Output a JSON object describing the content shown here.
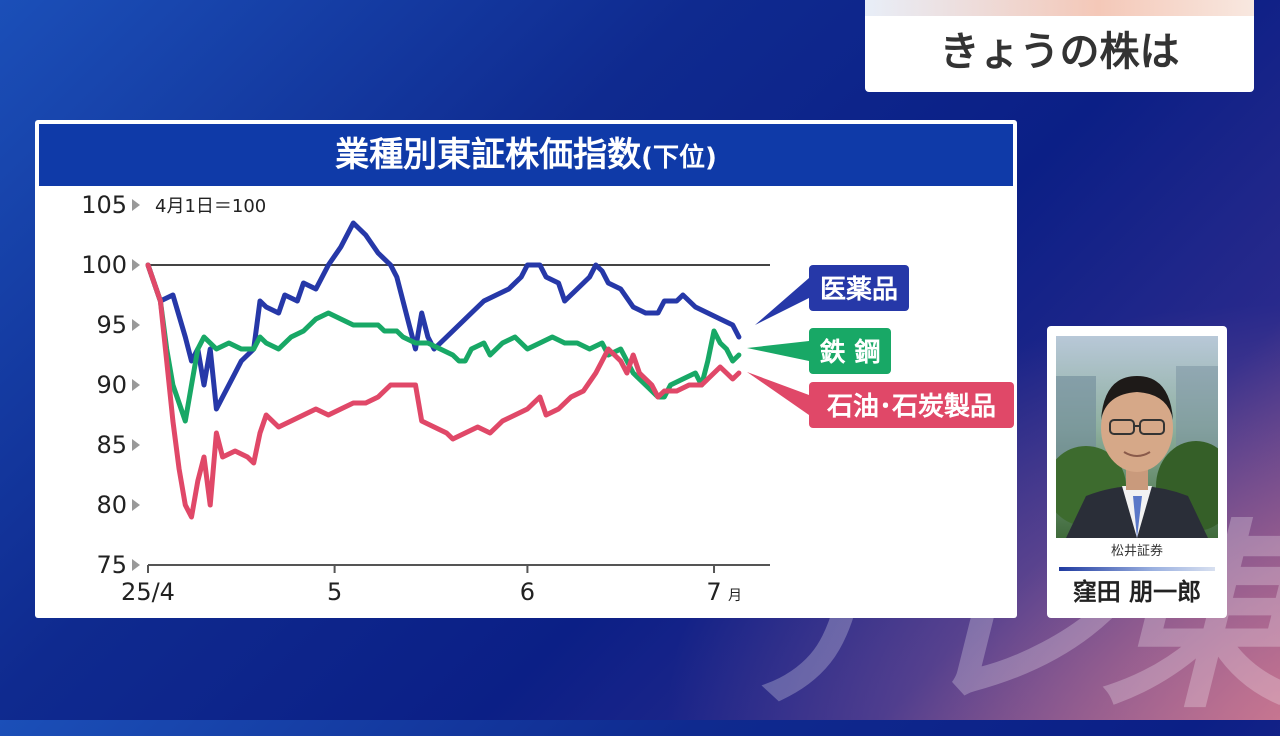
{
  "topic": {
    "title": "きょうの株は"
  },
  "chart_card": {
    "title": "業種別東証株価指数",
    "subtitle": "(下位)",
    "note": "4月1日＝100"
  },
  "guest": {
    "company": "松井証券",
    "name": "窪田 朋一郎"
  },
  "watermark": {
    "text": "テレ東"
  },
  "colors": {
    "pharma": "#2638a8",
    "steel": "#18a866",
    "oil": "#e04868",
    "header": "#0f3aa8"
  },
  "chart_data": {
    "type": "line",
    "title": "業種別東証株価指数(下位)",
    "note": "4月1日＝100",
    "ylim": [
      75,
      105
    ],
    "yticks": [
      105,
      100,
      95,
      90,
      85,
      80,
      75
    ],
    "reference_line": 100,
    "xlim": [
      0,
      100
    ],
    "xticks": [
      {
        "x": 0,
        "label": "25/4",
        "unit": ""
      },
      {
        "x": 30,
        "label": "5",
        "unit": ""
      },
      {
        "x": 61,
        "label": "6",
        "unit": ""
      },
      {
        "x": 91,
        "label": "7",
        "unit": "月"
      }
    ],
    "series": [
      {
        "name": "医薬品",
        "color": "#2638a8",
        "points": [
          [
            0,
            100
          ],
          [
            2,
            97
          ],
          [
            4,
            97.5
          ],
          [
            6,
            94
          ],
          [
            7,
            92
          ],
          [
            8,
            93
          ],
          [
            9,
            90
          ],
          [
            10,
            93
          ],
          [
            11,
            88
          ],
          [
            12,
            89
          ],
          [
            14,
            91
          ],
          [
            15,
            92
          ],
          [
            17,
            93
          ],
          [
            18,
            97
          ],
          [
            19,
            96.5
          ],
          [
            21,
            96
          ],
          [
            22,
            97.5
          ],
          [
            24,
            97
          ],
          [
            25,
            98.5
          ],
          [
            27,
            98
          ],
          [
            29,
            100
          ],
          [
            31,
            101.5
          ],
          [
            33,
            103.5
          ],
          [
            35,
            102.5
          ],
          [
            37,
            101
          ],
          [
            39,
            100
          ],
          [
            40,
            99
          ],
          [
            41,
            97
          ],
          [
            42,
            95
          ],
          [
            43,
            93
          ],
          [
            44,
            96
          ],
          [
            45,
            94
          ],
          [
            46,
            93
          ],
          [
            48,
            94
          ],
          [
            50,
            95
          ],
          [
            52,
            96
          ],
          [
            54,
            97
          ],
          [
            56,
            97.5
          ],
          [
            58,
            98
          ],
          [
            60,
            99
          ],
          [
            61,
            100
          ],
          [
            63,
            100
          ],
          [
            64,
            99
          ],
          [
            66,
            98.5
          ],
          [
            67,
            97
          ],
          [
            69,
            98
          ],
          [
            71,
            99
          ],
          [
            72,
            100
          ],
          [
            73,
            99.5
          ],
          [
            74,
            98.5
          ],
          [
            76,
            98
          ],
          [
            78,
            96.5
          ],
          [
            80,
            96
          ],
          [
            82,
            96
          ],
          [
            83,
            97
          ],
          [
            85,
            97
          ],
          [
            86,
            97.5
          ],
          [
            88,
            96.5
          ],
          [
            90,
            96
          ],
          [
            92,
            95.5
          ],
          [
            94,
            95
          ],
          [
            95,
            94
          ]
        ]
      },
      {
        "name": "鉄 鋼",
        "color": "#18a866",
        "points": [
          [
            0,
            100
          ],
          [
            2,
            97
          ],
          [
            3,
            93
          ],
          [
            4,
            90
          ],
          [
            6,
            87
          ],
          [
            7,
            90
          ],
          [
            8,
            93
          ],
          [
            9,
            94
          ],
          [
            11,
            93
          ],
          [
            13,
            93.5
          ],
          [
            15,
            93
          ],
          [
            17,
            93
          ],
          [
            18,
            94
          ],
          [
            19,
            93.5
          ],
          [
            21,
            93
          ],
          [
            23,
            94
          ],
          [
            25,
            94.5
          ],
          [
            27,
            95.5
          ],
          [
            29,
            96
          ],
          [
            31,
            95.5
          ],
          [
            33,
            95
          ],
          [
            35,
            95
          ],
          [
            37,
            95
          ],
          [
            38,
            94.5
          ],
          [
            40,
            94.5
          ],
          [
            41,
            94
          ],
          [
            43,
            93.5
          ],
          [
            45,
            93.5
          ],
          [
            47,
            93
          ],
          [
            49,
            92.5
          ],
          [
            50,
            92
          ],
          [
            51,
            92
          ],
          [
            52,
            93
          ],
          [
            54,
            93.5
          ],
          [
            55,
            92.5
          ],
          [
            57,
            93.5
          ],
          [
            59,
            94
          ],
          [
            61,
            93
          ],
          [
            63,
            93.5
          ],
          [
            65,
            94
          ],
          [
            67,
            93.5
          ],
          [
            69,
            93.5
          ],
          [
            71,
            93
          ],
          [
            73,
            93.5
          ],
          [
            74,
            92.5
          ],
          [
            76,
            93
          ],
          [
            78,
            91
          ],
          [
            80,
            90
          ],
          [
            82,
            89
          ],
          [
            83,
            89
          ],
          [
            84,
            90
          ],
          [
            86,
            90.5
          ],
          [
            88,
            91
          ],
          [
            89,
            90
          ],
          [
            90,
            92
          ],
          [
            91,
            94.5
          ],
          [
            92,
            93.5
          ],
          [
            93,
            93
          ],
          [
            94,
            92
          ],
          [
            95,
            92.5
          ]
        ]
      },
      {
        "name": "石油･石炭製品",
        "color": "#e04868",
        "points": [
          [
            0,
            100
          ],
          [
            2,
            97
          ],
          [
            3,
            92
          ],
          [
            4,
            87
          ],
          [
            5,
            83
          ],
          [
            6,
            80
          ],
          [
            7,
            79
          ],
          [
            8,
            82
          ],
          [
            9,
            84
          ],
          [
            10,
            80
          ],
          [
            11,
            86
          ],
          [
            12,
            84
          ],
          [
            14,
            84.5
          ],
          [
            16,
            84
          ],
          [
            17,
            83.5
          ],
          [
            18,
            86
          ],
          [
            19,
            87.5
          ],
          [
            21,
            86.5
          ],
          [
            23,
            87
          ],
          [
            25,
            87.5
          ],
          [
            27,
            88
          ],
          [
            29,
            87.5
          ],
          [
            31,
            88
          ],
          [
            33,
            88.5
          ],
          [
            35,
            88.5
          ],
          [
            37,
            89
          ],
          [
            39,
            90
          ],
          [
            41,
            90
          ],
          [
            43,
            90
          ],
          [
            44,
            87
          ],
          [
            46,
            86.5
          ],
          [
            48,
            86
          ],
          [
            49,
            85.5
          ],
          [
            51,
            86
          ],
          [
            53,
            86.5
          ],
          [
            55,
            86
          ],
          [
            57,
            87
          ],
          [
            59,
            87.5
          ],
          [
            61,
            88
          ],
          [
            62,
            88.5
          ],
          [
            63,
            89
          ],
          [
            64,
            87.5
          ],
          [
            66,
            88
          ],
          [
            68,
            89
          ],
          [
            70,
            89.5
          ],
          [
            72,
            91
          ],
          [
            73,
            92
          ],
          [
            74,
            93
          ],
          [
            76,
            92
          ],
          [
            77,
            91
          ],
          [
            78,
            92.5
          ],
          [
            79,
            91
          ],
          [
            80,
            90.5
          ],
          [
            81,
            90
          ],
          [
            82,
            89
          ],
          [
            83,
            89.5
          ],
          [
            85,
            89.5
          ],
          [
            87,
            90
          ],
          [
            89,
            90
          ],
          [
            90,
            90.5
          ],
          [
            91,
            91
          ],
          [
            92,
            91.5
          ],
          [
            93,
            91
          ],
          [
            94,
            90.5
          ],
          [
            95,
            91
          ]
        ]
      }
    ],
    "legend": [
      {
        "label": "医薬品",
        "color": "#2638a8"
      },
      {
        "label": "鉄 鋼",
        "color": "#18a866"
      },
      {
        "label": "石油･石炭製品",
        "color": "#e04868"
      }
    ]
  }
}
